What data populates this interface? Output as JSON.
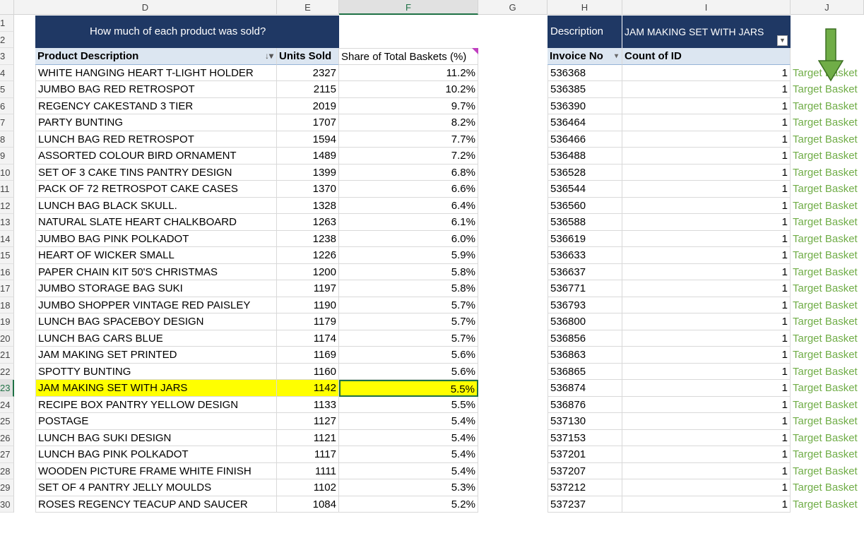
{
  "columns": {
    "D": "D",
    "E": "E",
    "F": "F",
    "G": "G",
    "H": "H",
    "I": "I",
    "J": "J"
  },
  "banner_title": "How much of each product was sold?",
  "filter": {
    "label": "Description",
    "value": "JAM MAKING SET WITH JARS"
  },
  "table_headers": {
    "product": "Product Description",
    "units": "Units Sold",
    "share": "Share of Total Baskets (%)"
  },
  "pivot_headers": {
    "invoice": "Invoice No",
    "count": "Count of ID"
  },
  "row_numbers": [
    "1",
    "2",
    "3",
    "4",
    "5",
    "6",
    "7",
    "8",
    "9",
    "10",
    "11",
    "12",
    "13",
    "14",
    "15",
    "16",
    "17",
    "18",
    "19",
    "20",
    "21",
    "22",
    "23",
    "24",
    "25",
    "26",
    "27",
    "28",
    "29",
    "30"
  ],
  "products": [
    {
      "name": "WHITE HANGING HEART T-LIGHT HOLDER",
      "units": "2327",
      "share": "11.2%"
    },
    {
      "name": "JUMBO BAG RED RETROSPOT",
      "units": "2115",
      "share": "10.2%"
    },
    {
      "name": "REGENCY CAKESTAND 3 TIER",
      "units": "2019",
      "share": "9.7%"
    },
    {
      "name": "PARTY BUNTING",
      "units": "1707",
      "share": "8.2%"
    },
    {
      "name": "LUNCH BAG RED RETROSPOT",
      "units": "1594",
      "share": "7.7%"
    },
    {
      "name": "ASSORTED COLOUR BIRD ORNAMENT",
      "units": "1489",
      "share": "7.2%"
    },
    {
      "name": "SET OF 3 CAKE TINS PANTRY DESIGN",
      "units": "1399",
      "share": "6.8%"
    },
    {
      "name": "PACK OF 72 RETROSPOT CAKE CASES",
      "units": "1370",
      "share": "6.6%"
    },
    {
      "name": "LUNCH BAG  BLACK SKULL.",
      "units": "1328",
      "share": "6.4%"
    },
    {
      "name": "NATURAL SLATE HEART CHALKBOARD",
      "units": "1263",
      "share": "6.1%"
    },
    {
      "name": "JUMBO BAG PINK POLKADOT",
      "units": "1238",
      "share": "6.0%"
    },
    {
      "name": "HEART OF WICKER SMALL",
      "units": "1226",
      "share": "5.9%"
    },
    {
      "name": "PAPER CHAIN KIT 50'S CHRISTMAS",
      "units": "1200",
      "share": "5.8%"
    },
    {
      "name": "JUMBO STORAGE BAG SUKI",
      "units": "1197",
      "share": "5.8%"
    },
    {
      "name": "JUMBO SHOPPER VINTAGE RED PAISLEY",
      "units": "1190",
      "share": "5.7%"
    },
    {
      "name": "LUNCH BAG SPACEBOY DESIGN",
      "units": "1179",
      "share": "5.7%"
    },
    {
      "name": "LUNCH BAG CARS BLUE",
      "units": "1174",
      "share": "5.7%"
    },
    {
      "name": "JAM MAKING SET PRINTED",
      "units": "1169",
      "share": "5.6%"
    },
    {
      "name": "SPOTTY BUNTING",
      "units": "1160",
      "share": "5.6%"
    },
    {
      "name": "JAM MAKING SET WITH JARS",
      "units": "1142",
      "share": "5.5%"
    },
    {
      "name": "RECIPE BOX PANTRY YELLOW DESIGN",
      "units": "1133",
      "share": "5.5%"
    },
    {
      "name": "POSTAGE",
      "units": "1127",
      "share": "5.4%"
    },
    {
      "name": "LUNCH BAG SUKI DESIGN",
      "units": "1121",
      "share": "5.4%"
    },
    {
      "name": "LUNCH BAG PINK POLKADOT",
      "units": "1117",
      "share": "5.4%"
    },
    {
      "name": "WOODEN PICTURE FRAME WHITE FINISH",
      "units": "1111",
      "share": "5.4%"
    },
    {
      "name": "SET OF 4 PANTRY JELLY MOULDS",
      "units": "1102",
      "share": "5.3%"
    },
    {
      "name": "ROSES REGENCY TEACUP AND SAUCER",
      "units": "1084",
      "share": "5.2%"
    }
  ],
  "invoices": [
    {
      "no": "536368",
      "count": "1",
      "tag": "Target Basket"
    },
    {
      "no": "536385",
      "count": "1",
      "tag": "Target Basket"
    },
    {
      "no": "536390",
      "count": "1",
      "tag": "Target Basket"
    },
    {
      "no": "536464",
      "count": "1",
      "tag": "Target Basket"
    },
    {
      "no": "536466",
      "count": "1",
      "tag": "Target Basket"
    },
    {
      "no": "536488",
      "count": "1",
      "tag": "Target Basket"
    },
    {
      "no": "536528",
      "count": "1",
      "tag": "Target Basket"
    },
    {
      "no": "536544",
      "count": "1",
      "tag": "Target Basket"
    },
    {
      "no": "536560",
      "count": "1",
      "tag": "Target Basket"
    },
    {
      "no": "536588",
      "count": "1",
      "tag": "Target Basket"
    },
    {
      "no": "536619",
      "count": "1",
      "tag": "Target Basket"
    },
    {
      "no": "536633",
      "count": "1",
      "tag": "Target Basket"
    },
    {
      "no": "536637",
      "count": "1",
      "tag": "Target Basket"
    },
    {
      "no": "536771",
      "count": "1",
      "tag": "Target Basket"
    },
    {
      "no": "536793",
      "count": "1",
      "tag": "Target Basket"
    },
    {
      "no": "536800",
      "count": "1",
      "tag": "Target Basket"
    },
    {
      "no": "536856",
      "count": "1",
      "tag": "Target Basket"
    },
    {
      "no": "536863",
      "count": "1",
      "tag": "Target Basket"
    },
    {
      "no": "536865",
      "count": "1",
      "tag": "Target Basket"
    },
    {
      "no": "536874",
      "count": "1",
      "tag": "Target Basket"
    },
    {
      "no": "536876",
      "count": "1",
      "tag": "Target Basket"
    },
    {
      "no": "537130",
      "count": "1",
      "tag": "Target Basket"
    },
    {
      "no": "537153",
      "count": "1",
      "tag": "Target Basket"
    },
    {
      "no": "537201",
      "count": "1",
      "tag": "Target Basket"
    },
    {
      "no": "537207",
      "count": "1",
      "tag": "Target Basket"
    },
    {
      "no": "537212",
      "count": "1",
      "tag": "Target Basket"
    },
    {
      "no": "537237",
      "count": "1",
      "tag": "Target Basket"
    }
  ],
  "colors": {
    "banner": "#1f3864",
    "highlight": "#ffff00",
    "tag_green": "#70ad47",
    "arrow": "#70ad47"
  }
}
